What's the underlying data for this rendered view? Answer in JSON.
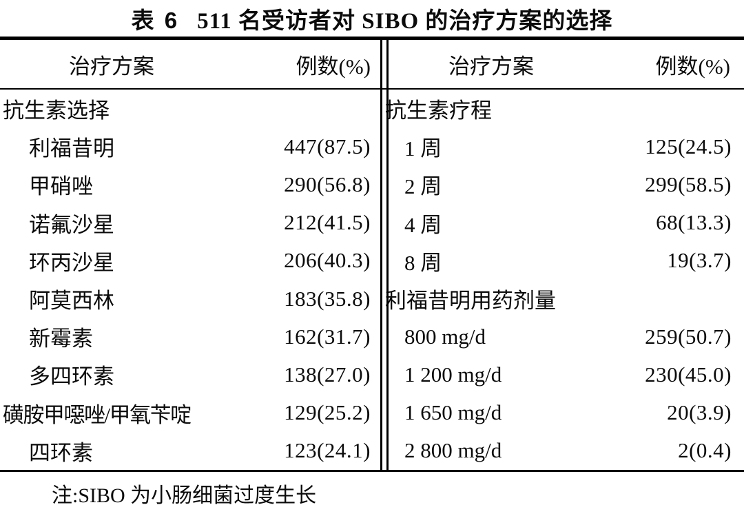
{
  "page": {
    "title": {
      "label": "表 6",
      "text": "511 名受访者对 SIBO 的治疗方案的选择"
    },
    "note": "注:SIBO 为小肠细菌过度生长"
  },
  "table": {
    "columns": {
      "plan": "治疗方案",
      "cases": "例数(%)"
    },
    "left_rows": [
      {
        "label": "抗生素选择",
        "value": "",
        "type": "section"
      },
      {
        "label": "利福昔明",
        "value": "447(87.5)",
        "type": "item"
      },
      {
        "label": "甲硝唑",
        "value": "290(56.8)",
        "type": "item"
      },
      {
        "label": "诺氟沙星",
        "value": "212(41.5)",
        "type": "item"
      },
      {
        "label": "环丙沙星",
        "value": "206(40.3)",
        "type": "item"
      },
      {
        "label": "阿莫西林",
        "value": "183(35.8)",
        "type": "item"
      },
      {
        "label": "新霉素",
        "value": "162(31.7)",
        "type": "item"
      },
      {
        "label": "多四环素",
        "value": "138(27.0)",
        "type": "item"
      },
      {
        "label": "磺胺甲噁唑/甲氧苄啶",
        "value": "129(25.2)",
        "type": "item-long"
      },
      {
        "label": "四环素",
        "value": "123(24.1)",
        "type": "item"
      }
    ],
    "right_rows": [
      {
        "label": "抗生素疗程",
        "value": "",
        "type": "section"
      },
      {
        "label": "1 周",
        "value": "125(24.5)",
        "type": "item"
      },
      {
        "label": "2 周",
        "value": "299(58.5)",
        "type": "item"
      },
      {
        "label": "4 周",
        "value": "68(13.3)",
        "type": "item"
      },
      {
        "label": "8 周",
        "value": "19(3.7)",
        "type": "item"
      },
      {
        "label": "利福昔明用药剂量",
        "value": "",
        "type": "section"
      },
      {
        "label": "800 mg/d",
        "value": "259(50.7)",
        "type": "item"
      },
      {
        "label": "1 200 mg/d",
        "value": "230(45.0)",
        "type": "item"
      },
      {
        "label": "1 650 mg/d",
        "value": "20(3.9)",
        "type": "item"
      },
      {
        "label": "2 800 mg/d",
        "value": "2(0.4)",
        "type": "item"
      }
    ]
  }
}
